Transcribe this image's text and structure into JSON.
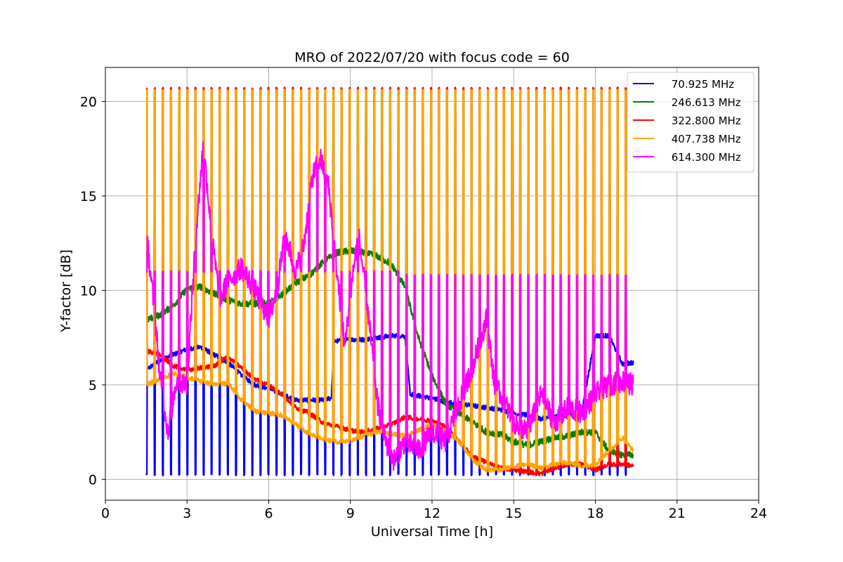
{
  "chart_data": {
    "type": "line",
    "title": "MRO of 2022/07/20 with focus code = 60",
    "xlabel": "Universal Time [h]",
    "ylabel": "Y-factor [dB]",
    "xlim": [
      0,
      24
    ],
    "ylim": [
      -1.1,
      21.8
    ],
    "x_ticks": [
      0,
      3,
      6,
      9,
      12,
      15,
      18,
      21,
      24
    ],
    "y_ticks": [
      0,
      5,
      10,
      15,
      20
    ],
    "grid": true,
    "legend_position": "top-right",
    "data_range_x": [
      1.5,
      19.4
    ],
    "calibration_spike_count": 60,
    "series": [
      {
        "name": " 70.925 MHz",
        "color": "#0000ff",
        "spike_low": 0.2,
        "spike_high": null,
        "points": [
          [
            1.5,
            5.8
          ],
          [
            2.0,
            6.3
          ],
          [
            2.5,
            6.6
          ],
          [
            3.0,
            6.9
          ],
          [
            3.5,
            7.0
          ],
          [
            4.0,
            6.6
          ],
          [
            4.5,
            6.2
          ],
          [
            5.0,
            5.5
          ],
          [
            5.5,
            5.0
          ],
          [
            6.0,
            4.8
          ],
          [
            6.5,
            4.5
          ],
          [
            7.0,
            4.2
          ],
          [
            7.5,
            4.2
          ],
          [
            8.0,
            4.2
          ],
          [
            8.3,
            4.3
          ],
          [
            8.4,
            7.3
          ],
          [
            9.0,
            7.4
          ],
          [
            9.5,
            7.4
          ],
          [
            10.0,
            7.5
          ],
          [
            10.5,
            7.6
          ],
          [
            11.0,
            7.6
          ],
          [
            11.2,
            4.5
          ],
          [
            12.0,
            4.3
          ],
          [
            12.5,
            4.1
          ],
          [
            13.0,
            4.0
          ],
          [
            13.5,
            3.9
          ],
          [
            14.0,
            3.8
          ],
          [
            14.5,
            3.7
          ],
          [
            15.0,
            3.5
          ],
          [
            15.5,
            3.4
          ],
          [
            16.0,
            3.2
          ],
          [
            16.5,
            3.3
          ],
          [
            17.0,
            3.4
          ],
          [
            17.5,
            3.6
          ],
          [
            18.0,
            7.6
          ],
          [
            18.5,
            7.6
          ],
          [
            19.0,
            6.1
          ],
          [
            19.4,
            6.2
          ]
        ]
      },
      {
        "name": " 246.613 MHz",
        "color": "#008000",
        "spike_low": 8.0,
        "spike_high": 20.7,
        "points": [
          [
            1.5,
            8.4
          ],
          [
            2.0,
            8.7
          ],
          [
            2.5,
            9.2
          ],
          [
            3.0,
            10.1
          ],
          [
            3.5,
            10.2
          ],
          [
            4.0,
            9.8
          ],
          [
            4.5,
            9.5
          ],
          [
            5.0,
            9.3
          ],
          [
            5.5,
            9.3
          ],
          [
            6.0,
            9.3
          ],
          [
            6.5,
            9.8
          ],
          [
            7.0,
            10.4
          ],
          [
            7.5,
            10.8
          ],
          [
            8.0,
            11.5
          ],
          [
            8.5,
            12.0
          ],
          [
            9.0,
            12.1
          ],
          [
            9.5,
            12.0
          ],
          [
            10.0,
            11.8
          ],
          [
            10.5,
            11.4
          ],
          [
            11.0,
            10.2
          ],
          [
            11.5,
            7.5
          ],
          [
            12.0,
            5.5
          ],
          [
            12.5,
            4.0
          ],
          [
            13.0,
            3.5
          ],
          [
            13.5,
            3.0
          ],
          [
            14.0,
            2.5
          ],
          [
            14.5,
            2.4
          ],
          [
            15.0,
            2.0
          ],
          [
            15.5,
            1.8
          ],
          [
            16.0,
            2.0
          ],
          [
            16.5,
            2.2
          ],
          [
            17.0,
            2.3
          ],
          [
            17.5,
            2.5
          ],
          [
            18.0,
            2.5
          ],
          [
            18.5,
            1.5
          ],
          [
            19.0,
            1.3
          ],
          [
            19.4,
            1.3
          ]
        ]
      },
      {
        "name": " 322.800 MHz",
        "color": "#ff0000",
        "spike_low": null,
        "spike_high": 20.7,
        "points": [
          [
            1.5,
            6.8
          ],
          [
            2.0,
            6.6
          ],
          [
            2.5,
            6.0
          ],
          [
            3.0,
            5.8
          ],
          [
            3.5,
            5.9
          ],
          [
            4.0,
            6.0
          ],
          [
            4.5,
            6.5
          ],
          [
            5.0,
            5.9
          ],
          [
            5.5,
            5.3
          ],
          [
            6.0,
            5.0
          ],
          [
            6.5,
            4.5
          ],
          [
            7.0,
            3.8
          ],
          [
            7.5,
            3.5
          ],
          [
            8.0,
            3.0
          ],
          [
            8.5,
            2.8
          ],
          [
            9.0,
            2.6
          ],
          [
            9.5,
            2.5
          ],
          [
            10.0,
            2.7
          ],
          [
            10.5,
            2.9
          ],
          [
            11.0,
            3.3
          ],
          [
            11.5,
            3.2
          ],
          [
            12.0,
            3.1
          ],
          [
            12.5,
            2.8
          ],
          [
            13.0,
            2.0
          ],
          [
            13.5,
            1.2
          ],
          [
            14.0,
            0.9
          ],
          [
            14.5,
            0.6
          ],
          [
            15.0,
            0.5
          ],
          [
            15.5,
            0.4
          ],
          [
            16.0,
            0.3
          ],
          [
            16.5,
            0.6
          ],
          [
            17.0,
            0.8
          ],
          [
            17.5,
            0.8
          ],
          [
            18.0,
            0.5
          ],
          [
            18.5,
            0.8
          ],
          [
            19.0,
            0.8
          ],
          [
            19.4,
            0.7
          ]
        ]
      },
      {
        "name": " 407.738 MHz",
        "color": "#ffa500",
        "spike_low": null,
        "spike_high": 20.6,
        "points": [
          [
            1.5,
            5.0
          ],
          [
            2.0,
            5.3
          ],
          [
            2.5,
            5.6
          ],
          [
            3.0,
            5.4
          ],
          [
            3.5,
            5.2
          ],
          [
            4.0,
            5.0
          ],
          [
            4.5,
            5.1
          ],
          [
            5.0,
            4.2
          ],
          [
            5.5,
            3.6
          ],
          [
            6.0,
            3.5
          ],
          [
            6.5,
            3.4
          ],
          [
            7.0,
            2.9
          ],
          [
            7.5,
            2.4
          ],
          [
            8.0,
            2.1
          ],
          [
            8.5,
            2.0
          ],
          [
            9.0,
            2.0
          ],
          [
            9.5,
            2.3
          ],
          [
            10.0,
            2.5
          ],
          [
            10.5,
            2.4
          ],
          [
            11.0,
            2.3
          ],
          [
            11.5,
            2.6
          ],
          [
            12.0,
            2.9
          ],
          [
            12.5,
            2.6
          ],
          [
            13.0,
            2.0
          ],
          [
            13.5,
            1.0
          ],
          [
            14.0,
            0.5
          ],
          [
            14.5,
            0.5
          ],
          [
            15.0,
            0.7
          ],
          [
            15.5,
            0.8
          ],
          [
            16.0,
            0.6
          ],
          [
            16.5,
            0.8
          ],
          [
            17.0,
            0.9
          ],
          [
            17.5,
            0.7
          ],
          [
            18.0,
            0.8
          ],
          [
            18.5,
            1.5
          ],
          [
            19.0,
            2.2
          ],
          [
            19.4,
            1.5
          ]
        ]
      },
      {
        "name": " 614.300 MHz",
        "color": "#ff00ff",
        "spike_low": null,
        "spike_high": 11.0,
        "spike_high_end_x": 10.9,
        "spike_high_after": 10.8,
        "points": [
          [
            1.5,
            13.0
          ],
          [
            1.8,
            9.0
          ],
          [
            2.0,
            5.5
          ],
          [
            2.3,
            2.5
          ],
          [
            2.6,
            5.2
          ],
          [
            3.0,
            5.0
          ],
          [
            3.3,
            12.5
          ],
          [
            3.6,
            17.8
          ],
          [
            3.9,
            13.0
          ],
          [
            4.2,
            9.5
          ],
          [
            4.5,
            10.5
          ],
          [
            5.0,
            11.2
          ],
          [
            5.5,
            10.0
          ],
          [
            6.0,
            8.5
          ],
          [
            6.3,
            10.0
          ],
          [
            6.6,
            13.0
          ],
          [
            7.0,
            11.0
          ],
          [
            7.3,
            12.5
          ],
          [
            7.6,
            16.0
          ],
          [
            7.9,
            17.0
          ],
          [
            8.2,
            15.5
          ],
          [
            8.5,
            11.0
          ],
          [
            8.8,
            7.0
          ],
          [
            9.1,
            11.0
          ],
          [
            9.3,
            13.0
          ],
          [
            9.6,
            9.5
          ],
          [
            10.0,
            4.0
          ],
          [
            10.3,
            2.0
          ],
          [
            10.6,
            1.0
          ],
          [
            11.0,
            2.0
          ],
          [
            11.5,
            1.5
          ],
          [
            12.0,
            2.5
          ],
          [
            12.5,
            2.0
          ],
          [
            13.0,
            4.0
          ],
          [
            13.5,
            6.0
          ],
          [
            14.0,
            8.5
          ],
          [
            14.3,
            5.0
          ],
          [
            14.7,
            4.0
          ],
          [
            15.0,
            3.0
          ],
          [
            15.5,
            2.5
          ],
          [
            16.0,
            4.5
          ],
          [
            16.5,
            3.0
          ],
          [
            17.0,
            3.8
          ],
          [
            17.5,
            3.5
          ],
          [
            18.0,
            4.5
          ],
          [
            18.5,
            5.0
          ],
          [
            19.0,
            5.2
          ],
          [
            19.4,
            5.0
          ]
        ]
      }
    ]
  }
}
